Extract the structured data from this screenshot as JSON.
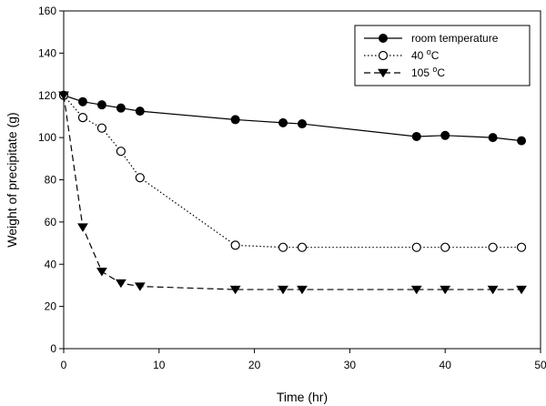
{
  "chart_data": {
    "type": "line",
    "xlabel": "Time (hr)",
    "ylabel": "Weight of precipitate (g)",
    "xlim": [
      0,
      50
    ],
    "ylim": [
      0,
      160
    ],
    "xticks": [
      0,
      10,
      20,
      30,
      40,
      50
    ],
    "yticks": [
      0,
      20,
      40,
      60,
      80,
      100,
      120,
      140,
      160
    ],
    "grid": false,
    "legend_position": "top-right",
    "series": [
      {
        "name": "room temperature",
        "line_style": "solid",
        "marker": "filled-circle",
        "color": "#000000",
        "x": [
          0,
          2,
          4,
          6,
          8,
          18,
          23,
          25,
          37,
          40,
          45,
          48
        ],
        "y": [
          120,
          117,
          115.5,
          114,
          112.5,
          108.5,
          107,
          106.5,
          100.5,
          101,
          100,
          98.5
        ]
      },
      {
        "name": "40 oC",
        "label_main": "40 ",
        "label_sup": "o",
        "label_after": "C",
        "line_style": "dotted",
        "marker": "open-circle",
        "color": "#000000",
        "x": [
          0,
          2,
          4,
          6,
          8,
          18,
          23,
          25,
          37,
          40,
          45,
          48
        ],
        "y": [
          120,
          109.5,
          104.5,
          93.5,
          81,
          49,
          48,
          48,
          48,
          48,
          48,
          48
        ]
      },
      {
        "name": "105 oC",
        "label_main": "105 ",
        "label_sup": "o",
        "label_after": "C",
        "line_style": "dashed",
        "marker": "filled-triangle-down",
        "color": "#000000",
        "x": [
          0,
          2,
          4,
          6,
          8,
          18,
          23,
          25,
          37,
          40,
          45,
          48
        ],
        "y": [
          120,
          57.5,
          36.5,
          31,
          29.5,
          28,
          28,
          28,
          28,
          28,
          28,
          28
        ]
      }
    ]
  }
}
